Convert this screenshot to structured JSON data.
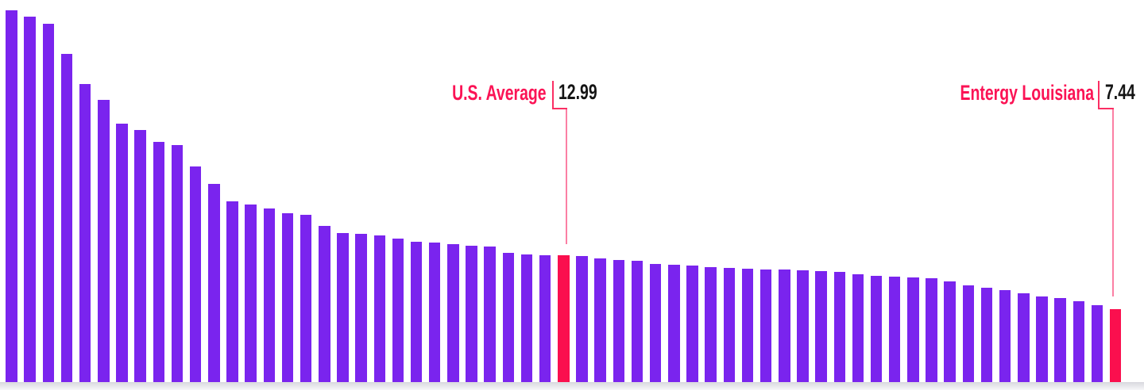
{
  "chart_data": {
    "type": "bar",
    "title": "",
    "order": "descending",
    "grid": false,
    "ylim": [
      0,
      40
    ],
    "values": [
      38.1,
      37.4,
      36.7,
      33.6,
      30.5,
      28.9,
      26.5,
      25.8,
      24.6,
      24.3,
      22.1,
      20.3,
      18.5,
      18.2,
      17.8,
      17.3,
      17.1,
      16.0,
      15.3,
      15.2,
      15.0,
      14.7,
      14.4,
      14.3,
      14.1,
      14.0,
      13.9,
      13.2,
      13.1,
      13.0,
      12.99,
      12.9,
      12.7,
      12.5,
      12.4,
      12.1,
      12.0,
      11.9,
      11.8,
      11.7,
      11.6,
      11.55,
      11.5,
      11.45,
      11.4,
      11.3,
      11.0,
      10.9,
      10.8,
      10.7,
      10.6,
      10.3,
      9.9,
      9.7,
      9.4,
      9.1,
      8.8,
      8.6,
      8.3,
      7.9,
      7.44
    ],
    "highlights": [
      {
        "index": 30,
        "label": "U.S. Average",
        "value": 12.99,
        "value_label": "12.99"
      },
      {
        "index": 60,
        "label": "Entergy Louisiana",
        "value": 7.44,
        "value_label": "7.44"
      }
    ],
    "colors": {
      "bar": "#7a24ee",
      "highlight_bar": "#fa0f4e",
      "label_text": "#fb1355",
      "value_text": "#141414",
      "leader_line": "#fb2e63",
      "leader_drop": "#fb7fa4",
      "baseline": "#d9d8de"
    }
  }
}
